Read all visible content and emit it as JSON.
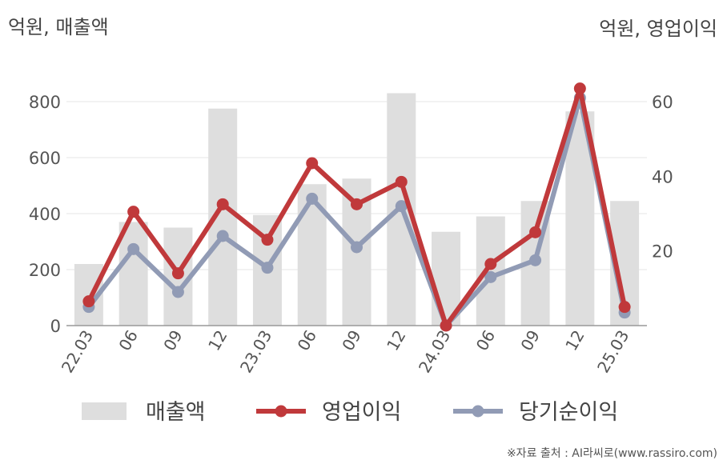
{
  "chart_data": {
    "type": "bar+line",
    "title": "",
    "left_axis_label": "억원, 매출액",
    "right_axis_label": "억원, 영업이익",
    "categories": [
      "22.03",
      "06",
      "09",
      "12",
      "23.03",
      "06",
      "09",
      "12",
      "24.03",
      "06",
      "09",
      "12",
      "25.03"
    ],
    "left_ylim": [
      0,
      900
    ],
    "left_ticks": [
      0,
      200,
      400,
      600,
      800
    ],
    "right_ylim": [
      0,
      67.5
    ],
    "right_ticks": [
      20,
      40,
      60
    ],
    "grid": true,
    "legend_position": "bottom",
    "series": [
      {
        "name": "매출액",
        "kind": "bar",
        "axis": "left",
        "color": "#dedede",
        "values": [
          220,
          370,
          350,
          775,
          395,
          505,
          525,
          830,
          335,
          390,
          445,
          765,
          445
        ]
      },
      {
        "name": "영업이익",
        "kind": "line",
        "axis": "right",
        "color": "#c0393b",
        "values": [
          6.5,
          30.5,
          14,
          32.5,
          23,
          43.5,
          32.5,
          38.5,
          0,
          16.5,
          25,
          63.5,
          5
        ]
      },
      {
        "name": "당기순이익",
        "kind": "line",
        "axis": "right",
        "color": "#919bb5",
        "values": [
          5,
          20.5,
          9,
          24,
          15.5,
          34,
          21,
          32,
          0,
          13,
          17.5,
          61,
          3.5
        ]
      }
    ]
  },
  "source_note": "※자료 출처 : AI라씨로(www.rassiro.com)"
}
